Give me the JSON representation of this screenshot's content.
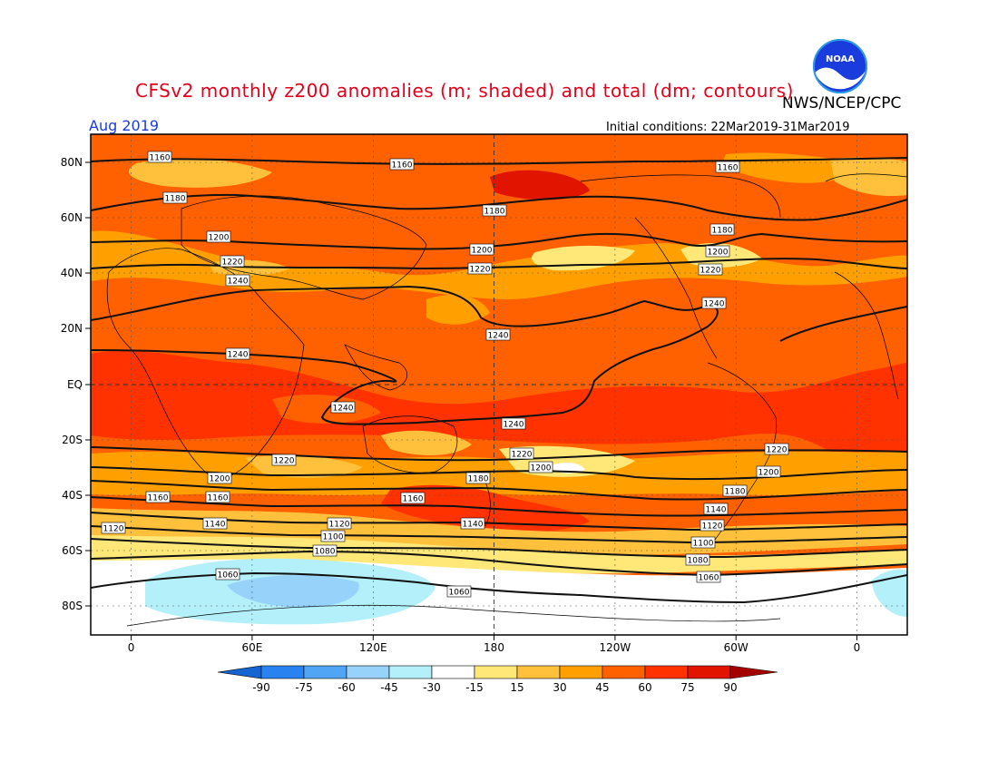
{
  "header": {
    "title": "CFSv2 monthly z200 anomalies (m; shaded) and total (dm; contours)",
    "org": "NWS/NCEP/CPC",
    "month": "Aug 2019",
    "initial_conditions": "Initial conditions: 22Mar2019-31Mar2019",
    "logo_text": "NOAA"
  },
  "axes": {
    "lat_labels": [
      "80N",
      "60N",
      "40N",
      "20N",
      "EQ",
      "20S",
      "40S",
      "60S",
      "80S"
    ],
    "lon_labels": [
      "0",
      "60E",
      "120E",
      "180",
      "120W",
      "60W",
      "0"
    ]
  },
  "contours": {
    "labels": [
      "1160",
      "1160",
      "1160",
      "1180",
      "1180",
      "1180",
      "1200",
      "1200",
      "1200",
      "1220",
      "1220",
      "1220",
      "1240",
      "1240",
      "1240",
      "1240",
      "1240",
      "1240",
      "1220",
      "1220",
      "1220",
      "1200",
      "1200",
      "1200",
      "1180",
      "1180",
      "1160",
      "1160",
      "1160",
      "1140",
      "1140",
      "1140",
      "1120",
      "1120",
      "1120",
      "1100",
      "1100",
      "1080",
      "1080",
      "1060",
      "1060",
      "1060"
    ]
  },
  "colorbar": {
    "labels": [
      "-90",
      "-75",
      "-60",
      "-45",
      "-30",
      "-15",
      "15",
      "30",
      "45",
      "60",
      "75",
      "90"
    ],
    "colors": [
      "#1464d2",
      "#2882f0",
      "#50a5f5",
      "#96d2fa",
      "#b4f0fa",
      "#ffffff",
      "#ffe878",
      "#ffc03c",
      "#ffa000",
      "#ff6000",
      "#ff3200",
      "#e11400",
      "#a50000"
    ]
  }
}
